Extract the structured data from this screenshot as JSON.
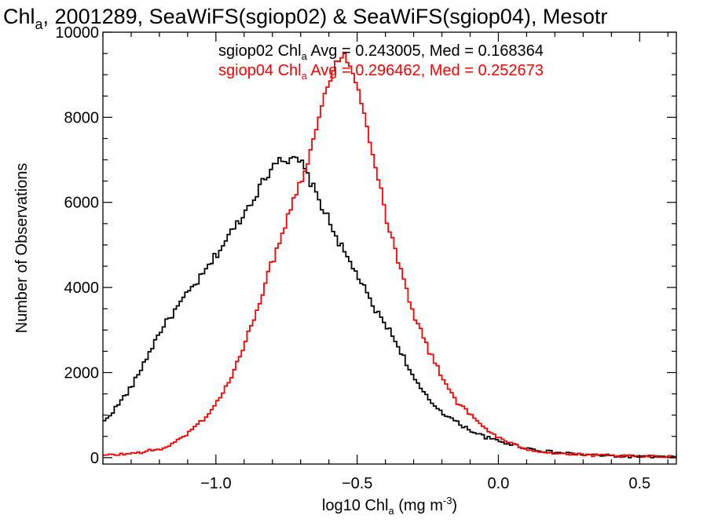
{
  "chart_data": {
    "type": "line",
    "title": {
      "pre": "Chl",
      "sub": "a",
      "post": ", 2001289, SeaWiFS(sgiop02) & SeaWiFS(sgiop04), Mesotr"
    },
    "xlabel": {
      "pre": "log10 Chl",
      "sub": "a",
      "mid": " (mg m",
      "sup": "-3",
      "post": ")"
    },
    "ylabel": "Number of Observations",
    "xlim": [
      -1.4,
      0.63
    ],
    "ylim": [
      -150,
      10000
    ],
    "x_ticks": [
      {
        "value": -1.0,
        "label": "−1.0"
      },
      {
        "value": -0.5,
        "label": "−0.5"
      },
      {
        "value": 0.0,
        "label": "0.0"
      },
      {
        "value": 0.5,
        "label": "0.5"
      }
    ],
    "y_ticks": [
      {
        "value": 0,
        "label": "0"
      },
      {
        "value": 2000,
        "label": "2000"
      },
      {
        "value": 4000,
        "label": "4000"
      },
      {
        "value": 6000,
        "label": "6000"
      },
      {
        "value": 8000,
        "label": "8000"
      },
      {
        "value": 10000,
        "label": "10000"
      }
    ],
    "legend": [
      {
        "pre": "sgiop02 Chl",
        "sub": "a",
        "post": " Avg = 0.243005, Med = 0.168364",
        "color": "#000000"
      },
      {
        "pre": "sgiop04 Chl",
        "sub": "a",
        "post": " Avg = 0.296462, Med = 0.252673",
        "color": "#ff0000"
      }
    ],
    "series": [
      {
        "color": "#000000",
        "bin_width": 0.01,
        "x": [
          -1.4,
          -1.35,
          -1.3,
          -1.25,
          -1.2,
          -1.15,
          -1.1,
          -1.05,
          -1.0,
          -0.95,
          -0.9,
          -0.85,
          -0.8,
          -0.78,
          -0.75,
          -0.72,
          -0.7,
          -0.65,
          -0.6,
          -0.55,
          -0.5,
          -0.45,
          -0.4,
          -0.35,
          -0.3,
          -0.25,
          -0.2,
          -0.15,
          -0.1,
          -0.05,
          0.0,
          0.05,
          0.1,
          0.15,
          0.2,
          0.3,
          0.4,
          0.5,
          0.63
        ],
        "y": [
          850,
          1250,
          1700,
          2350,
          3000,
          3450,
          3900,
          4300,
          4800,
          5300,
          5800,
          6350,
          6900,
          7100,
          6950,
          7000,
          6900,
          6200,
          5500,
          4800,
          4250,
          3550,
          3100,
          2500,
          1800,
          1350,
          1050,
          820,
          630,
          480,
          380,
          300,
          220,
          160,
          120,
          70,
          40,
          25,
          15
        ]
      },
      {
        "color": "#ff0000",
        "bin_width": 0.01,
        "x": [
          -1.4,
          -1.3,
          -1.2,
          -1.15,
          -1.1,
          -1.05,
          -1.0,
          -0.95,
          -0.9,
          -0.85,
          -0.8,
          -0.75,
          -0.7,
          -0.67,
          -0.65,
          -0.6,
          -0.58,
          -0.55,
          -0.52,
          -0.5,
          -0.47,
          -0.45,
          -0.42,
          -0.4,
          -0.35,
          -0.3,
          -0.25,
          -0.2,
          -0.15,
          -0.1,
          -0.05,
          0.0,
          0.05,
          0.1,
          0.15,
          0.2,
          0.3,
          0.4,
          0.5,
          0.63
        ],
        "y": [
          50,
          100,
          200,
          350,
          600,
          900,
          1300,
          1900,
          2700,
          3700,
          4700,
          5700,
          6600,
          7200,
          7800,
          8900,
          9400,
          9450,
          9000,
          8600,
          7800,
          7200,
          6300,
          5600,
          4400,
          3300,
          2500,
          1850,
          1300,
          980,
          680,
          450,
          300,
          200,
          140,
          100,
          60,
          40,
          25,
          20
        ]
      }
    ]
  }
}
